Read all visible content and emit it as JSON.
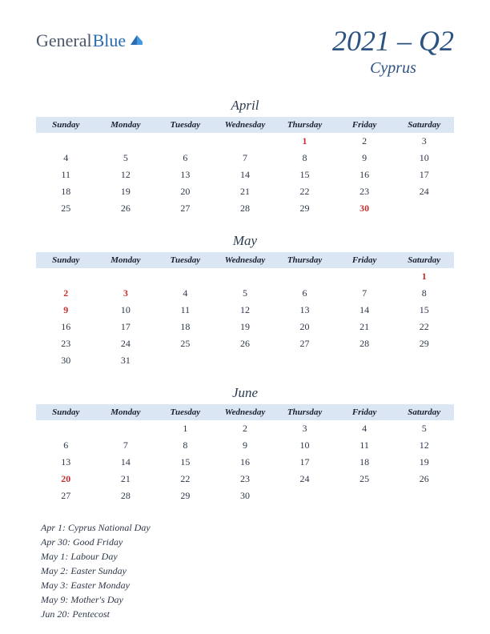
{
  "logo": {
    "part1": "General",
    "part2": "Blue"
  },
  "header": {
    "year_quarter": "2021 – Q2",
    "country": "Cyprus"
  },
  "days": [
    "Sunday",
    "Monday",
    "Tuesday",
    "Wednesday",
    "Thursday",
    "Friday",
    "Saturday"
  ],
  "colors": {
    "header_bg": "#dbe6f4",
    "title_color": "#2c5282",
    "text_color": "#2d3748",
    "holiday_color": "#c53030",
    "logo_blue": "#2b6cb0",
    "logo_gray": "#4a5568"
  },
  "months": [
    {
      "name": "April",
      "weeks": [
        [
          {
            "d": ""
          },
          {
            "d": ""
          },
          {
            "d": ""
          },
          {
            "d": ""
          },
          {
            "d": "1",
            "h": true
          },
          {
            "d": "2"
          },
          {
            "d": "3"
          }
        ],
        [
          {
            "d": "4"
          },
          {
            "d": "5"
          },
          {
            "d": "6"
          },
          {
            "d": "7"
          },
          {
            "d": "8"
          },
          {
            "d": "9"
          },
          {
            "d": "10"
          }
        ],
        [
          {
            "d": "11"
          },
          {
            "d": "12"
          },
          {
            "d": "13"
          },
          {
            "d": "14"
          },
          {
            "d": "15"
          },
          {
            "d": "16"
          },
          {
            "d": "17"
          }
        ],
        [
          {
            "d": "18"
          },
          {
            "d": "19"
          },
          {
            "d": "20"
          },
          {
            "d": "21"
          },
          {
            "d": "22"
          },
          {
            "d": "23"
          },
          {
            "d": "24"
          }
        ],
        [
          {
            "d": "25"
          },
          {
            "d": "26"
          },
          {
            "d": "27"
          },
          {
            "d": "28"
          },
          {
            "d": "29"
          },
          {
            "d": "30",
            "h": true
          },
          {
            "d": ""
          }
        ]
      ]
    },
    {
      "name": "May",
      "weeks": [
        [
          {
            "d": ""
          },
          {
            "d": ""
          },
          {
            "d": ""
          },
          {
            "d": ""
          },
          {
            "d": ""
          },
          {
            "d": ""
          },
          {
            "d": "1",
            "h": true
          }
        ],
        [
          {
            "d": "2",
            "h": true
          },
          {
            "d": "3",
            "h": true
          },
          {
            "d": "4"
          },
          {
            "d": "5"
          },
          {
            "d": "6"
          },
          {
            "d": "7"
          },
          {
            "d": "8"
          }
        ],
        [
          {
            "d": "9",
            "h": true
          },
          {
            "d": "10"
          },
          {
            "d": "11"
          },
          {
            "d": "12"
          },
          {
            "d": "13"
          },
          {
            "d": "14"
          },
          {
            "d": "15"
          }
        ],
        [
          {
            "d": "16"
          },
          {
            "d": "17"
          },
          {
            "d": "18"
          },
          {
            "d": "19"
          },
          {
            "d": "20"
          },
          {
            "d": "21"
          },
          {
            "d": "22"
          }
        ],
        [
          {
            "d": "23"
          },
          {
            "d": "24"
          },
          {
            "d": "25"
          },
          {
            "d": "26"
          },
          {
            "d": "27"
          },
          {
            "d": "28"
          },
          {
            "d": "29"
          }
        ],
        [
          {
            "d": "30"
          },
          {
            "d": "31"
          },
          {
            "d": ""
          },
          {
            "d": ""
          },
          {
            "d": ""
          },
          {
            "d": ""
          },
          {
            "d": ""
          }
        ]
      ]
    },
    {
      "name": "June",
      "weeks": [
        [
          {
            "d": ""
          },
          {
            "d": ""
          },
          {
            "d": "1"
          },
          {
            "d": "2"
          },
          {
            "d": "3"
          },
          {
            "d": "4"
          },
          {
            "d": "5"
          }
        ],
        [
          {
            "d": "6"
          },
          {
            "d": "7"
          },
          {
            "d": "8"
          },
          {
            "d": "9"
          },
          {
            "d": "10"
          },
          {
            "d": "11"
          },
          {
            "d": "12"
          }
        ],
        [
          {
            "d": "13"
          },
          {
            "d": "14"
          },
          {
            "d": "15"
          },
          {
            "d": "16"
          },
          {
            "d": "17"
          },
          {
            "d": "18"
          },
          {
            "d": "19"
          }
        ],
        [
          {
            "d": "20",
            "h": true
          },
          {
            "d": "21"
          },
          {
            "d": "22"
          },
          {
            "d": "23"
          },
          {
            "d": "24"
          },
          {
            "d": "25"
          },
          {
            "d": "26"
          }
        ],
        [
          {
            "d": "27"
          },
          {
            "d": "28"
          },
          {
            "d": "29"
          },
          {
            "d": "30"
          },
          {
            "d": ""
          },
          {
            "d": ""
          },
          {
            "d": ""
          }
        ]
      ]
    }
  ],
  "holidays": [
    "Apr 1: Cyprus National Day",
    "Apr 30: Good Friday",
    "May 1: Labour Day",
    "May 2: Easter Sunday",
    "May 3: Easter Monday",
    "May 9: Mother's Day",
    "Jun 20: Pentecost"
  ]
}
